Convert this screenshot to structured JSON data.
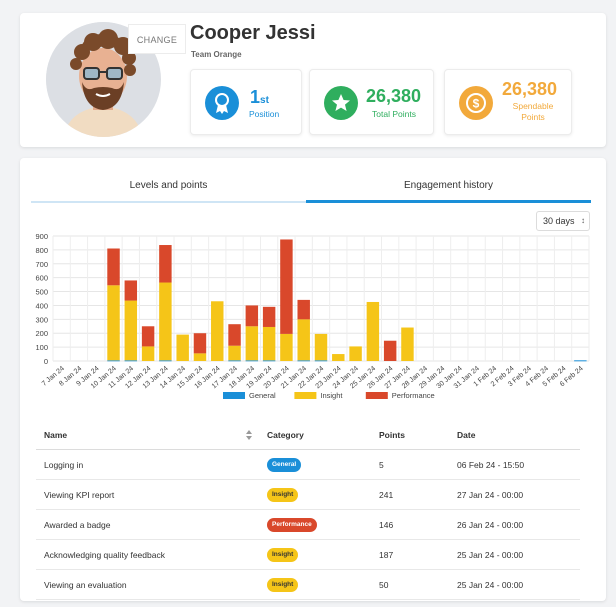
{
  "profile": {
    "change_label": "CHANGE",
    "name": "Cooper Jessi",
    "team": "Team Orange"
  },
  "stats": [
    {
      "value": "1",
      "suffix": "st",
      "label": "Position",
      "icon": "award-icon",
      "color": "#1a8fd8"
    },
    {
      "value": "26,380",
      "label": "Total Points",
      "icon": "star-icon",
      "color": "#2fae5e"
    },
    {
      "value": "26,380",
      "label": "Spendable Points",
      "icon": "dollar-icon",
      "color": "#f2a93b"
    }
  ],
  "tabs": [
    {
      "label": "Levels and points",
      "active": false
    },
    {
      "label": "Engagement history",
      "active": true
    }
  ],
  "range_select": {
    "value": "30 days"
  },
  "chart_data": {
    "type": "bar",
    "stacked": true,
    "categories": [
      "7 Jan 24",
      "8 Jan 24",
      "9 Jan 24",
      "10 Jan 24",
      "11 Jan 24",
      "12 Jan 24",
      "13 Jan 24",
      "14 Jan 24",
      "15 Jan 24",
      "16 Jan 24",
      "17 Jan 24",
      "18 Jan 24",
      "19 Jan 24",
      "20 Jan 24",
      "21 Jan 24",
      "22 Jan 24",
      "23 Jan 24",
      "24 Jan 24",
      "25 Jan 24",
      "26 Jan 24",
      "27 Jan 24",
      "28 Jan 24",
      "29 Jan 24",
      "30 Jan 24",
      "31 Jan 24",
      "1 Feb 24",
      "2 Feb 24",
      "3 Feb 24",
      "4 Feb 24",
      "5 Feb 24",
      "6 Feb 24"
    ],
    "series": [
      {
        "name": "General",
        "color": "#1a8fd8",
        "values": [
          0,
          0,
          0,
          5,
          5,
          0,
          5,
          0,
          0,
          0,
          5,
          5,
          5,
          0,
          5,
          5,
          0,
          0,
          0,
          0,
          0,
          0,
          0,
          0,
          0,
          0,
          0,
          0,
          0,
          0,
          5
        ]
      },
      {
        "name": "Insight",
        "color": "#f5c518",
        "values": [
          0,
          0,
          0,
          540,
          430,
          105,
          560,
          190,
          55,
          430,
          105,
          245,
          240,
          195,
          295,
          190,
          50,
          105,
          425,
          0,
          241,
          0,
          0,
          0,
          0,
          0,
          0,
          0,
          0,
          0,
          0
        ]
      },
      {
        "name": "Performance",
        "color": "#d9482b",
        "values": [
          0,
          0,
          0,
          265,
          145,
          145,
          270,
          0,
          145,
          0,
          155,
          150,
          145,
          680,
          140,
          0,
          0,
          0,
          0,
          146,
          0,
          0,
          0,
          0,
          0,
          0,
          0,
          0,
          0,
          0,
          0
        ]
      }
    ],
    "yticks": [
      0,
      100,
      200,
      300,
      400,
      500,
      600,
      700,
      800,
      900
    ],
    "ylim": [
      0,
      900
    ],
    "grid": true,
    "legend": "bottom"
  },
  "table": {
    "headers": [
      "Name",
      "Category",
      "Points",
      "Date"
    ],
    "rows": [
      {
        "name": "Logging in",
        "category": "General",
        "cat_color": "#1a8fd8",
        "cat_text": "#ffffff",
        "points": "5",
        "date": "06 Feb 24 - 15:50"
      },
      {
        "name": "Viewing KPI report",
        "category": "Insight",
        "cat_color": "#f5c518",
        "cat_text": "#333333",
        "points": "241",
        "date": "27 Jan 24 - 00:00"
      },
      {
        "name": "Awarded a badge",
        "category": "Performance",
        "cat_color": "#d9482b",
        "cat_text": "#ffffff",
        "points": "146",
        "date": "26 Jan 24 - 00:00"
      },
      {
        "name": "Acknowledging quality feedback",
        "category": "Insight",
        "cat_color": "#f5c518",
        "cat_text": "#333333",
        "points": "187",
        "date": "25 Jan 24 - 00:00"
      },
      {
        "name": "Viewing an evaluation",
        "category": "Insight",
        "cat_color": "#f5c518",
        "cat_text": "#333333",
        "points": "50",
        "date": "25 Jan 24 - 00:00"
      }
    ]
  }
}
